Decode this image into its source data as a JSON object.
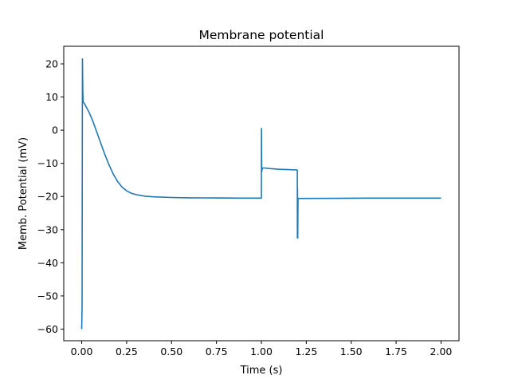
{
  "chart_data": {
    "type": "line",
    "title": "Membrane potential",
    "xlabel": "Time (s)",
    "ylabel": "Memb. Potential (mV)",
    "xlim": [
      -0.1,
      2.1
    ],
    "ylim": [
      -63.5,
      25.3
    ],
    "xticks": [
      0.0,
      0.25,
      0.5,
      0.75,
      1.0,
      1.25,
      1.5,
      1.75,
      2.0
    ],
    "xtick_labels": [
      "0.00",
      "0.25",
      "0.50",
      "0.75",
      "1.00",
      "1.25",
      "1.50",
      "1.75",
      "2.00"
    ],
    "yticks": [
      -60,
      -50,
      -40,
      -30,
      -20,
      -10,
      0,
      10,
      20
    ],
    "ytick_labels": [
      "−60",
      "−50",
      "−40",
      "−30",
      "−20",
      "−10",
      "0",
      "10",
      "20"
    ],
    "grid": false,
    "series": [
      {
        "color": "#1f77b4",
        "x": [
          0.0,
          0.002,
          0.004,
          0.006,
          0.008,
          0.012,
          0.02,
          0.04,
          0.06,
          0.08,
          0.1,
          0.125,
          0.15,
          0.175,
          0.2,
          0.225,
          0.25,
          0.275,
          0.3,
          0.35,
          0.4,
          0.5,
          0.6,
          0.75,
          0.9,
          1.0,
          1.0005,
          1.002,
          1.004,
          1.006,
          1.008,
          1.01,
          1.015,
          1.05,
          1.1,
          1.15,
          1.2,
          1.2005,
          1.201,
          1.2025,
          1.204,
          1.206,
          1.208,
          1.21,
          1.25,
          1.4,
          1.6,
          1.8,
          2.0
        ],
        "y": [
          -60,
          -53,
          21.5,
          12,
          8.5,
          8.3,
          7.5,
          5.5,
          3,
          0,
          -3,
          -6.8,
          -10.2,
          -13.2,
          -15.5,
          -17.2,
          -18.3,
          -19.0,
          -19.4,
          -19.9,
          -20.1,
          -20.3,
          -20.4,
          -20.45,
          -20.5,
          -20.5,
          0.5,
          -12.5,
          -11.8,
          -11.5,
          -11.5,
          -11.4,
          -11.4,
          -11.6,
          -11.8,
          -11.9,
          -12.0,
          -32.5,
          -17.5,
          -32.5,
          -20.5,
          -20.6,
          -20.6,
          -20.6,
          -20.6,
          -20.55,
          -20.5,
          -20.5,
          -20.5
        ]
      }
    ]
  }
}
